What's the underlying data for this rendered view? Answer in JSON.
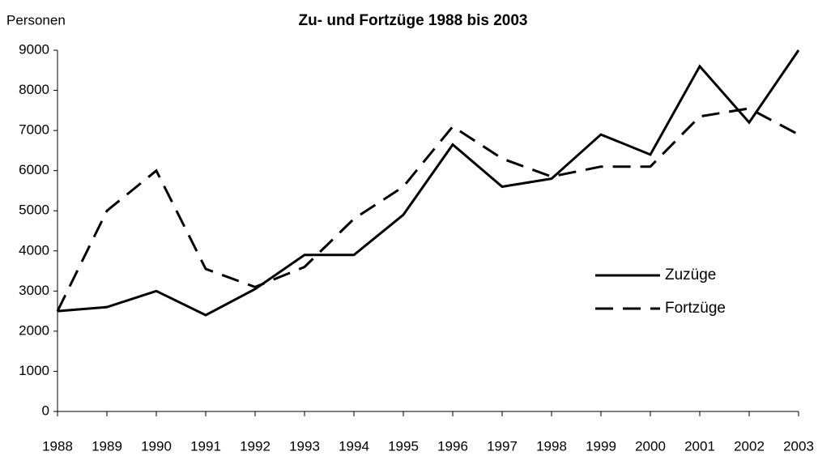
{
  "chart_data": {
    "type": "line",
    "title": "Zu- und Fortzüge 1988 bis 2003",
    "y_label": "Personen",
    "categories": [
      "1988",
      "1989",
      "1990",
      "1991",
      "1992",
      "1993",
      "1994",
      "1995",
      "1996",
      "1997",
      "1998",
      "1999",
      "2000",
      "2001",
      "2002",
      "2003"
    ],
    "series": [
      {
        "name": "Zuzüge",
        "color": "#000000",
        "dash": "solid",
        "values": [
          2500,
          2600,
          3000,
          2400,
          3050,
          3900,
          3900,
          4900,
          6650,
          5600,
          5800,
          6900,
          6400,
          8600,
          7200,
          9000
        ]
      },
      {
        "name": "Fortzüge",
        "color": "#000000",
        "dash": "dashed",
        "values": [
          2500,
          5000,
          6000,
          3550,
          3100,
          3600,
          4800,
          5600,
          7100,
          6300,
          5850,
          6100,
          6100,
          7350,
          7550,
          6900
        ]
      }
    ],
    "ylim": [
      0,
      9000
    ],
    "yticks": [
      0,
      1000,
      2000,
      3000,
      4000,
      5000,
      6000,
      7000,
      8000,
      9000
    ],
    "grid": false,
    "legend": "right"
  }
}
